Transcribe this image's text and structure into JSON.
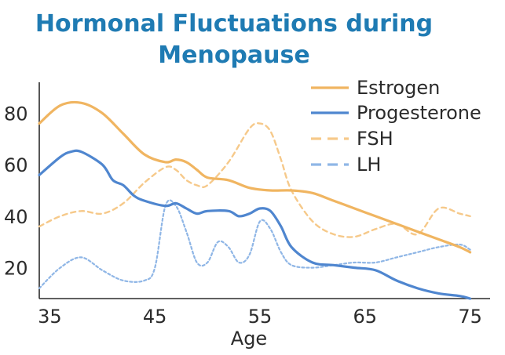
{
  "colors": {
    "title": "#1f7bb3",
    "estrogen": "#f0b561",
    "progesterone": "#4f86cf",
    "fsh": "#f6c98a",
    "lh": "#8fb6e6"
  },
  "chart_data": {
    "type": "line",
    "title_lines": [
      "Hormonal Fluctuations during",
      "Menopause"
    ],
    "xlabel": "Age",
    "ylabel": "",
    "xlim": [
      34,
      76
    ],
    "ylim": [
      8,
      92
    ],
    "x_ticks": [
      35,
      45,
      55,
      65,
      75
    ],
    "y_ticks": [
      20,
      40,
      60,
      80
    ],
    "grid": false,
    "legend_position": "top-right",
    "series": [
      {
        "name": "Estrogen",
        "style": "solid",
        "color": "#f0b561",
        "x": [
          34,
          36,
          38,
          40,
          42,
          44,
          46,
          47,
          48,
          49,
          50,
          52,
          54,
          56,
          58,
          60,
          62,
          64,
          66,
          68,
          70,
          72,
          74,
          75
        ],
        "y": [
          76,
          83,
          84,
          80,
          72,
          64,
          61,
          62,
          61,
          58,
          55,
          54,
          51,
          50,
          50,
          49,
          46,
          43,
          40,
          37,
          34,
          31,
          28,
          26
        ]
      },
      {
        "name": "Progesterone",
        "style": "solid",
        "color": "#4f86cf",
        "x": [
          34,
          36,
          37,
          38,
          40,
          41,
          42,
          43,
          44,
          46,
          47,
          48,
          49,
          50,
          52,
          53,
          54,
          55,
          56,
          57,
          58,
          60,
          62,
          64,
          66,
          68,
          70,
          72,
          74,
          75
        ],
        "y": [
          56,
          63,
          65,
          65,
          60,
          54,
          52,
          48,
          46,
          44,
          45,
          43,
          41,
          42,
          42,
          40,
          41,
          43,
          42,
          36,
          28,
          22,
          21,
          20,
          19,
          15,
          12,
          10,
          9,
          8
        ]
      },
      {
        "name": "FSH",
        "style": "dashed",
        "color": "#f6c98a",
        "x": [
          34,
          36,
          38,
          40,
          42,
          44,
          46,
          47,
          48,
          49,
          50,
          52,
          54,
          55,
          56,
          57,
          58,
          60,
          62,
          64,
          66,
          68,
          70,
          72,
          74,
          75
        ],
        "y": [
          36,
          40,
          42,
          41,
          45,
          53,
          59,
          58,
          54,
          52,
          52,
          61,
          74,
          76,
          73,
          62,
          50,
          38,
          33,
          32,
          35,
          37,
          33,
          43,
          41,
          40
        ]
      },
      {
        "name": "LH",
        "style": "dotted",
        "color": "#8fb6e6",
        "x": [
          34,
          36,
          38,
          40,
          42,
          44,
          45,
          46,
          47,
          48,
          49,
          50,
          51,
          52,
          53,
          54,
          55,
          56,
          57,
          58,
          60,
          62,
          64,
          66,
          68,
          70,
          72,
          74,
          75
        ],
        "y": [
          12,
          20,
          24,
          19,
          15,
          15,
          20,
          44,
          44,
          34,
          22,
          22,
          30,
          28,
          22,
          25,
          38,
          35,
          26,
          21,
          20,
          21,
          22,
          22,
          24,
          26,
          28,
          29,
          27
        ]
      }
    ],
    "legend": [
      "Estrogen",
      "Progesterone",
      "FSH",
      "LH"
    ]
  }
}
